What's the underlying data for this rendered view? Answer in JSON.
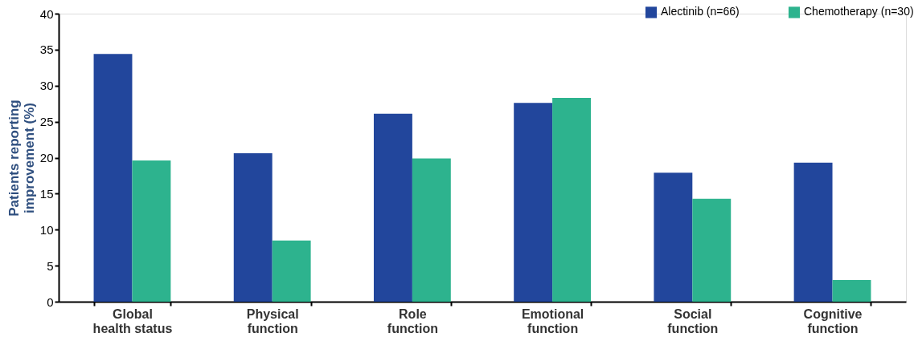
{
  "chart_data": {
    "type": "bar",
    "ylabel": "Patients reporting\nimprovement (%)",
    "categories": [
      "Global\nhealth status",
      "Physical\nfunction",
      "Role\nfunction",
      "Emotional\nfunction",
      "Social\nfunction",
      "Cognitive\nfunction"
    ],
    "series": [
      {
        "name": "Alectinib (n=66)",
        "color": "#22469c",
        "values": [
          34.4,
          20.6,
          26.1,
          27.6,
          17.9,
          19.3
        ]
      },
      {
        "name": "Chemotherapy (n=30)",
        "color": "#2db38e",
        "values": [
          19.6,
          8.5,
          19.9,
          28.3,
          14.3,
          3.0
        ]
      }
    ],
    "ylim": [
      0,
      40
    ],
    "yticks": [
      0,
      5,
      10,
      15,
      20,
      25,
      30,
      35,
      40
    ],
    "grid": false,
    "legend": "top right"
  }
}
